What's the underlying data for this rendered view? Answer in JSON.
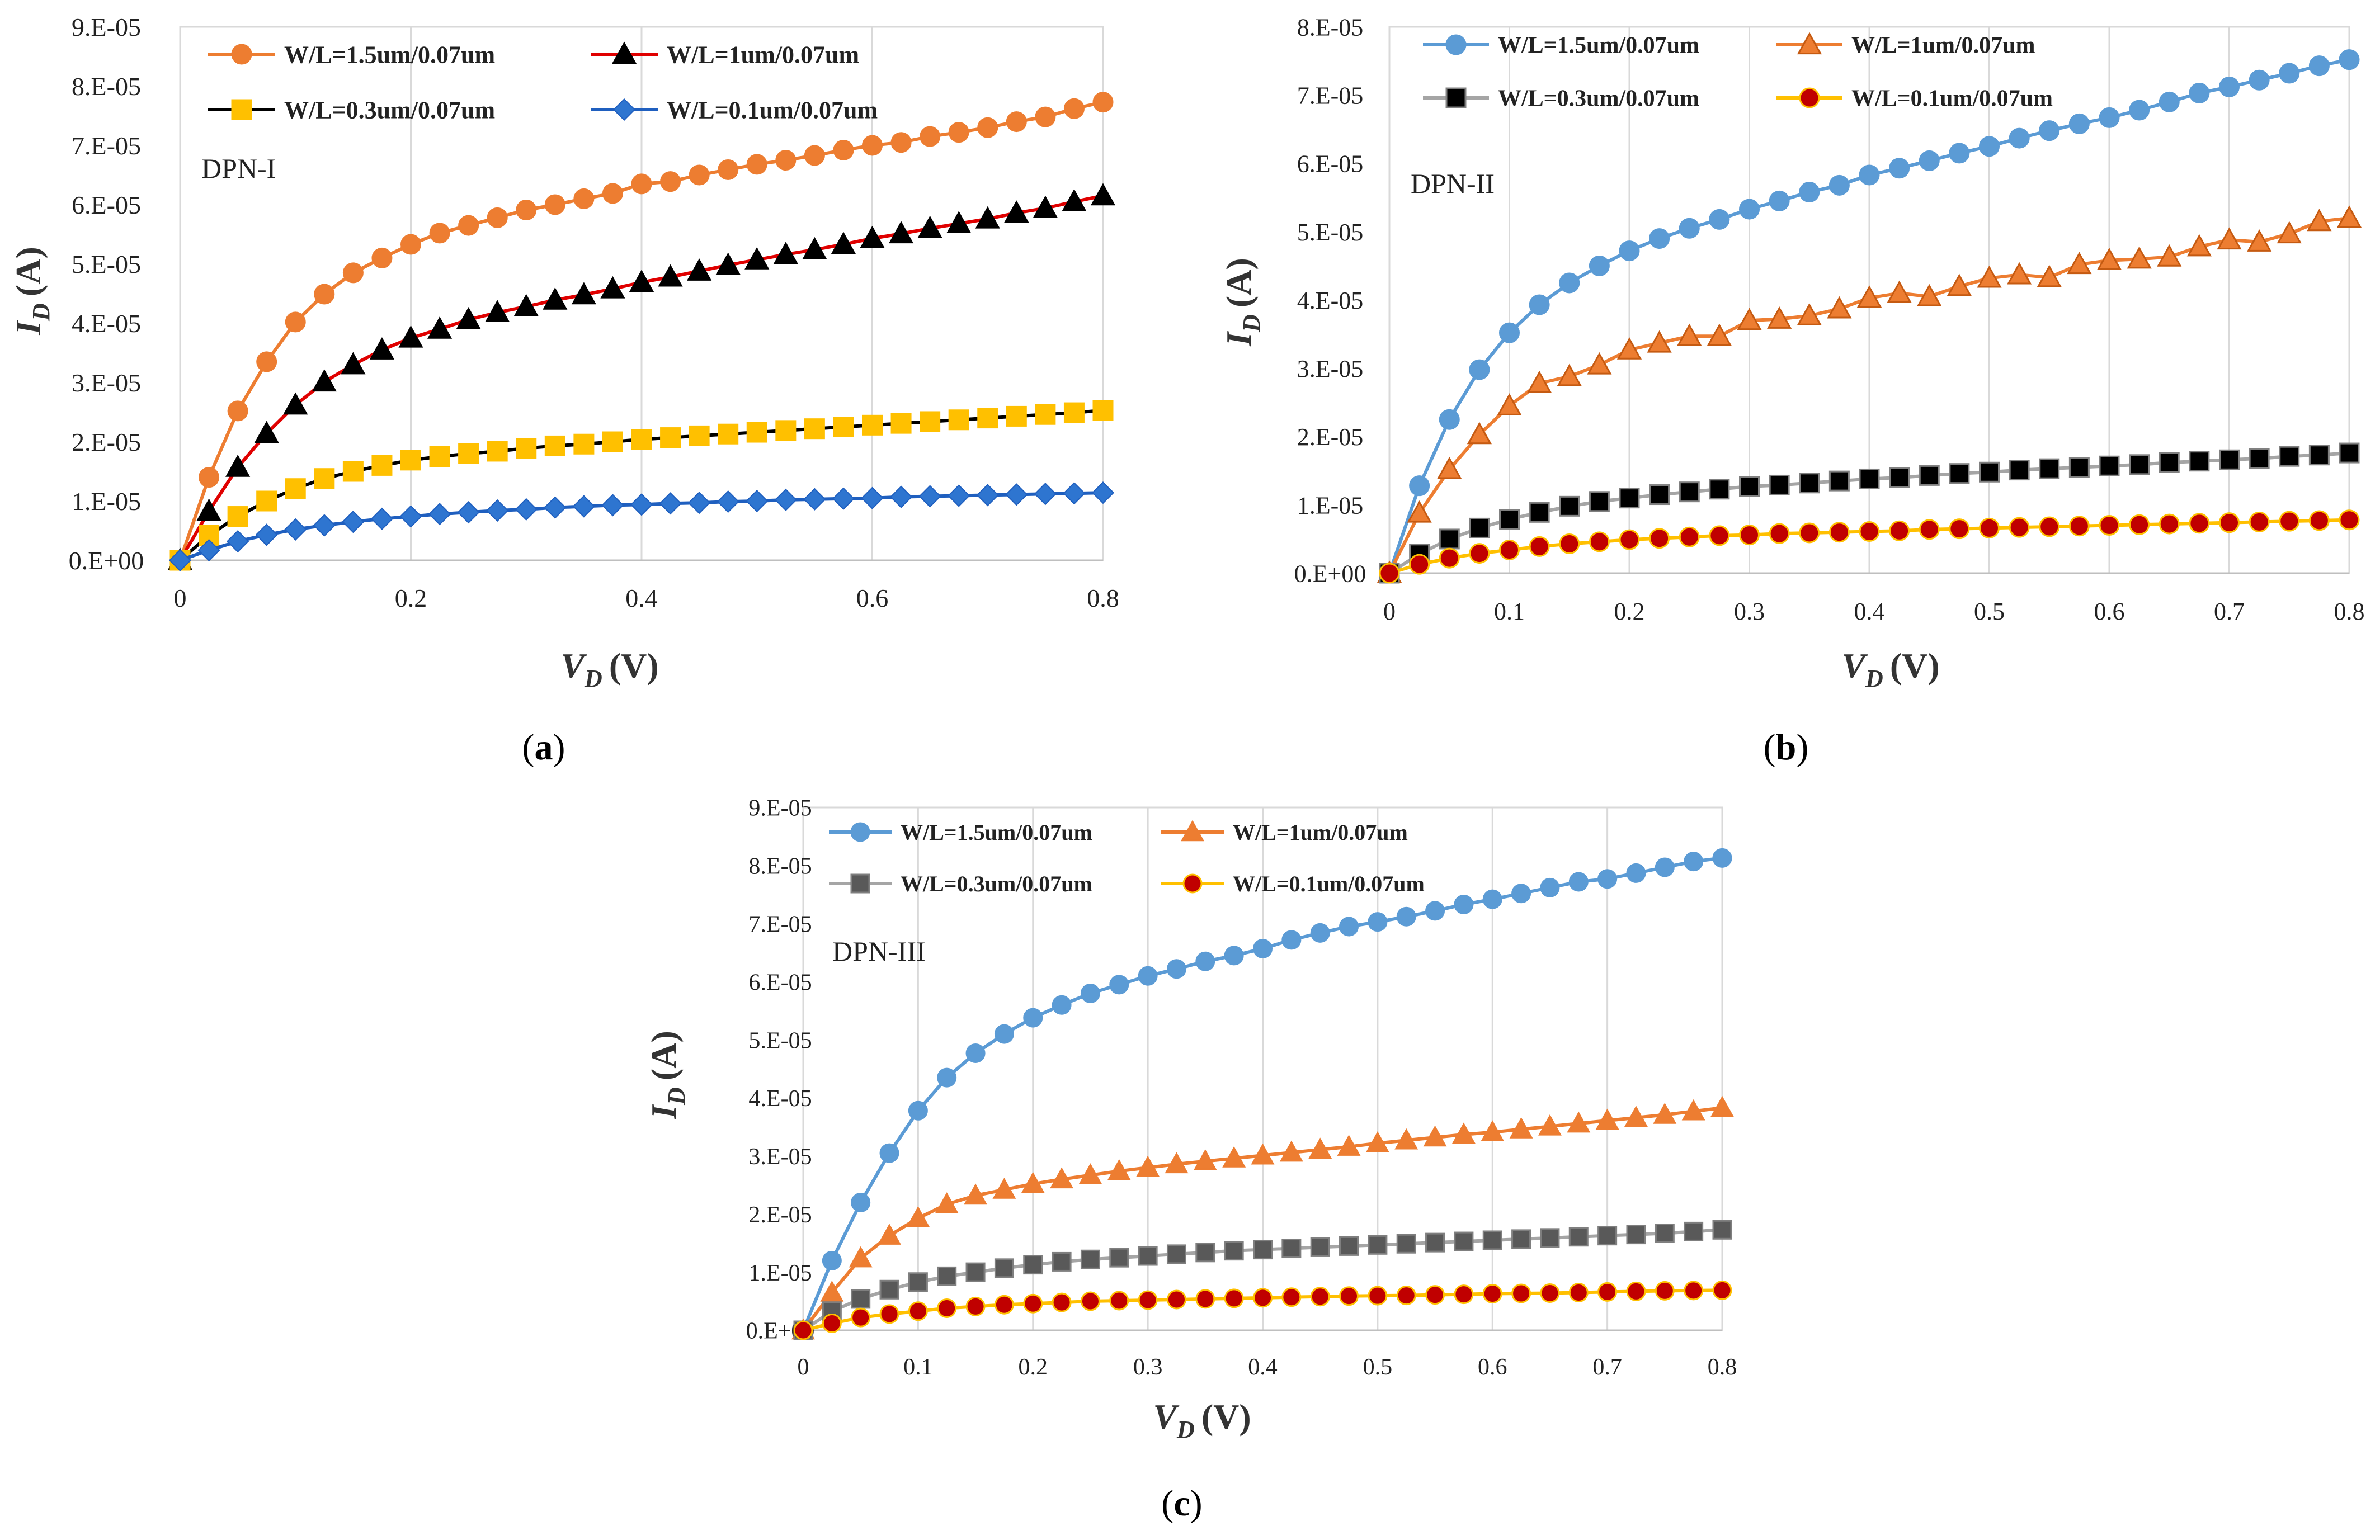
{
  "chart_data": [
    {
      "type": "line",
      "panel_label": "(a)",
      "panel_letter": "a",
      "title": "DPN-I",
      "xlabel_main": "V",
      "xlabel_sub": "D",
      "xlabel_unit": "(V)",
      "ylabel_main": "I",
      "ylabel_sub": "D",
      "ylabel_unit": "(A)",
      "xlim": [
        0,
        0.8
      ],
      "ylim": [
        0,
        9e-05
      ],
      "x_ticks": [
        0,
        0.2,
        0.4,
        0.6,
        0.8
      ],
      "x_tick_labels": [
        "0",
        "0.2",
        "0.4",
        "0.6",
        "0.8"
      ],
      "y_ticks": [
        0,
        1e-05,
        2e-05,
        3e-05,
        4e-05,
        5e-05,
        6e-05,
        7e-05,
        8e-05,
        9e-05
      ],
      "y_tick_labels": [
        "0.E+00",
        "1.E-05",
        "2.E-05",
        "3.E-05",
        "4.E-05",
        "5.E-05",
        "6.E-05",
        "7.E-05",
        "8.E-05",
        "9.E-05"
      ],
      "grid": "vertical",
      "x": [
        0,
        0.025,
        0.05,
        0.075,
        0.1,
        0.125,
        0.15,
        0.175,
        0.2,
        0.225,
        0.25,
        0.275,
        0.3,
        0.325,
        0.35,
        0.375,
        0.4,
        0.425,
        0.45,
        0.475,
        0.5,
        0.525,
        0.55,
        0.575,
        0.6,
        0.625,
        0.65,
        0.675,
        0.7,
        0.725,
        0.75,
        0.775,
        0.8
      ],
      "series": [
        {
          "name": "W/L=1.5um/0.07um",
          "line_color": "#ED7D31",
          "marker": "circle",
          "marker_fill": "#ED7D31",
          "marker_edge": "#ED7D31",
          "values": [
            0,
            1.4e-05,
            2.52e-05,
            3.35e-05,
            4.02e-05,
            4.49e-05,
            4.85e-05,
            5.1e-05,
            5.33e-05,
            5.52e-05,
            5.65e-05,
            5.78e-05,
            5.91e-05,
            6e-05,
            6.1e-05,
            6.19e-05,
            6.35e-05,
            6.39e-05,
            6.5e-05,
            6.59e-05,
            6.68e-05,
            6.75e-05,
            6.83e-05,
            6.92e-05,
            7e-05,
            7.05e-05,
            7.15e-05,
            7.22e-05,
            7.3e-05,
            7.4e-05,
            7.48e-05,
            7.62e-05,
            7.73e-05
          ]
        },
        {
          "name": "W/L=1um/0.07um",
          "line_color": "#E00000",
          "marker": "triangle",
          "marker_fill": "#000000",
          "marker_edge": "#000000",
          "values": [
            0,
            8.3e-06,
            1.57e-05,
            2.14e-05,
            2.62e-05,
            3.01e-05,
            3.3e-05,
            3.55e-05,
            3.75e-05,
            3.9e-05,
            4.06e-05,
            4.18e-05,
            4.28e-05,
            4.39e-05,
            4.48e-05,
            4.58e-05,
            4.69e-05,
            4.78e-05,
            4.88e-05,
            4.98e-05,
            5.07e-05,
            5.16e-05,
            5.24e-05,
            5.33e-05,
            5.43e-05,
            5.51e-05,
            5.6e-05,
            5.68e-05,
            5.76e-05,
            5.86e-05,
            5.94e-05,
            6.05e-05,
            6.15e-05
          ]
        },
        {
          "name": "W/L=0.3um/0.07um",
          "line_color": "#000000",
          "marker": "square",
          "marker_fill": "#FFC000",
          "marker_edge": "#FFC000",
          "values": [
            0,
            4.2e-06,
            7.4e-06,
            1e-05,
            1.21e-05,
            1.38e-05,
            1.5e-05,
            1.6e-05,
            1.69e-05,
            1.75e-05,
            1.8e-05,
            1.84e-05,
            1.89e-05,
            1.93e-05,
            1.96e-05,
            2e-05,
            2.04e-05,
            2.07e-05,
            2.1e-05,
            2.13e-05,
            2.16e-05,
            2.19e-05,
            2.22e-05,
            2.25e-05,
            2.28e-05,
            2.31e-05,
            2.34e-05,
            2.37e-05,
            2.4e-05,
            2.43e-05,
            2.46e-05,
            2.49e-05,
            2.53e-05
          ]
        },
        {
          "name": "W/L=0.1um/0.07um",
          "line_color": "#1F5FBF",
          "marker": "diamond",
          "marker_fill": "#2E75D0",
          "marker_edge": "#1F5FBF",
          "values": [
            0,
            1.7e-06,
            3.2e-06,
            4.3e-06,
            5.2e-06,
            5.9e-06,
            6.5e-06,
            7e-06,
            7.4e-06,
            7.8e-06,
            8.1e-06,
            8.4e-06,
            8.6e-06,
            8.9e-06,
            9.1e-06,
            9.3e-06,
            9.4e-06,
            9.6e-06,
            9.7e-06,
            9.9e-06,
            1e-05,
            1.02e-05,
            1.03e-05,
            1.04e-05,
            1.05e-05,
            1.07e-05,
            1.08e-05,
            1.09e-05,
            1.1e-05,
            1.11e-05,
            1.12e-05,
            1.13e-05,
            1.14e-05
          ]
        }
      ]
    },
    {
      "type": "line",
      "panel_label": "(b)",
      "panel_letter": "b",
      "title": "DPN-II",
      "xlabel_main": "V",
      "xlabel_sub": "D",
      "xlabel_unit": "(V)",
      "ylabel_main": "I",
      "ylabel_sub": "D",
      "ylabel_unit": "(A)",
      "xlim": [
        0,
        0.8
      ],
      "ylim": [
        0,
        8e-05
      ],
      "x_ticks": [
        0,
        0.1,
        0.2,
        0.3,
        0.4,
        0.5,
        0.6,
        0.7,
        0.8
      ],
      "x_tick_labels": [
        "0",
        "0.1",
        "0.2",
        "0.3",
        "0.4",
        "0.5",
        "0.6",
        "0.7",
        "0.8"
      ],
      "y_ticks": [
        0,
        1e-05,
        2e-05,
        3e-05,
        4e-05,
        5e-05,
        6e-05,
        7e-05,
        8e-05
      ],
      "y_tick_labels": [
        "0.E+00",
        "1.E-05",
        "2.E-05",
        "3.E-05",
        "4.E-05",
        "5.E-05",
        "6.E-05",
        "7.E-05",
        "8.E-05"
      ],
      "grid": "vertical",
      "x": [
        0,
        0.025,
        0.05,
        0.075,
        0.1,
        0.125,
        0.15,
        0.175,
        0.2,
        0.225,
        0.25,
        0.275,
        0.3,
        0.325,
        0.35,
        0.375,
        0.4,
        0.425,
        0.45,
        0.475,
        0.5,
        0.525,
        0.55,
        0.575,
        0.6,
        0.625,
        0.65,
        0.675,
        0.7,
        0.725,
        0.75,
        0.775,
        0.8
      ],
      "series": [
        {
          "name": "W/L=1.5um/0.07um",
          "line_color": "#5B9BD5",
          "marker": "circle",
          "marker_fill": "#5B9BD5",
          "marker_edge": "#5B9BD5",
          "values": [
            0,
            1.28e-05,
            2.25e-05,
            2.98e-05,
            3.52e-05,
            3.93e-05,
            4.25e-05,
            4.5e-05,
            4.72e-05,
            4.9e-05,
            5.05e-05,
            5.18e-05,
            5.33e-05,
            5.45e-05,
            5.58e-05,
            5.68e-05,
            5.83e-05,
            5.93e-05,
            6.04e-05,
            6.15e-05,
            6.25e-05,
            6.37e-05,
            6.48e-05,
            6.58e-05,
            6.67e-05,
            6.78e-05,
            6.9e-05,
            7.03e-05,
            7.12e-05,
            7.22e-05,
            7.32e-05,
            7.43e-05,
            7.52e-05
          ]
        },
        {
          "name": "W/L=1um/0.07um",
          "line_color": "#ED7D31",
          "marker": "triangle",
          "marker_fill": "#ED7D31",
          "marker_edge": "#C55A11",
          "values": [
            0,
            8.8e-06,
            1.52e-05,
            2.03e-05,
            2.45e-05,
            2.78e-05,
            2.88e-05,
            3.05e-05,
            3.27e-05,
            3.37e-05,
            3.47e-05,
            3.47e-05,
            3.7e-05,
            3.72e-05,
            3.77e-05,
            3.87e-05,
            4.03e-05,
            4.1e-05,
            4.05e-05,
            4.2e-05,
            4.32e-05,
            4.37e-05,
            4.33e-05,
            4.52e-05,
            4.58e-05,
            4.6e-05,
            4.63e-05,
            4.78e-05,
            4.88e-05,
            4.85e-05,
            4.97e-05,
            5.15e-05,
            5.2e-05
          ]
        },
        {
          "name": "W/L=0.3um/0.07um",
          "line_color": "#A5A5A5",
          "marker": "square",
          "marker_fill": "#000000",
          "marker_edge": "#808080",
          "values": [
            0,
            2.8e-06,
            5e-06,
            6.6e-06,
            7.9e-06,
            8.9e-06,
            9.8e-06,
            1.05e-05,
            1.1e-05,
            1.15e-05,
            1.19e-05,
            1.23e-05,
            1.27e-05,
            1.29e-05,
            1.32e-05,
            1.35e-05,
            1.38e-05,
            1.4e-05,
            1.43e-05,
            1.46e-05,
            1.48e-05,
            1.51e-05,
            1.53e-05,
            1.55e-05,
            1.57e-05,
            1.59e-05,
            1.62e-05,
            1.64e-05,
            1.66e-05,
            1.68e-05,
            1.71e-05,
            1.73e-05,
            1.76e-05
          ]
        },
        {
          "name": "W/L=0.1um/0.07um",
          "line_color": "#FFC000",
          "marker": "circle",
          "marker_fill": "#C00000",
          "marker_edge": "#FFC000",
          "values": [
            0,
            1.3e-06,
            2.2e-06,
            2.9e-06,
            3.4e-06,
            3.9e-06,
            4.3e-06,
            4.6e-06,
            4.9e-06,
            5.1e-06,
            5.3e-06,
            5.5e-06,
            5.6e-06,
            5.8e-06,
            5.9e-06,
            6e-06,
            6.1e-06,
            6.2e-06,
            6.4e-06,
            6.5e-06,
            6.6e-06,
            6.7e-06,
            6.8e-06,
            6.9e-06,
            7e-06,
            7.1e-06,
            7.2e-06,
            7.3e-06,
            7.4e-06,
            7.5e-06,
            7.6e-06,
            7.7e-06,
            7.8e-06
          ]
        }
      ]
    },
    {
      "type": "line",
      "panel_label": "(c)",
      "panel_letter": "c",
      "title": "DPN-III",
      "xlabel_main": "V",
      "xlabel_sub": "D",
      "xlabel_unit": "(V)",
      "ylabel_main": "I",
      "ylabel_sub": "D",
      "ylabel_unit": "(A)",
      "xlim": [
        0,
        0.8
      ],
      "ylim": [
        0,
        9e-05
      ],
      "x_ticks": [
        0,
        0.1,
        0.2,
        0.3,
        0.4,
        0.5,
        0.6,
        0.7,
        0.8
      ],
      "x_tick_labels": [
        "0",
        "0.1",
        "0.2",
        "0.3",
        "0.4",
        "0.5",
        "0.6",
        "0.7",
        "0.8"
      ],
      "y_ticks": [
        0,
        1e-05,
        2e-05,
        3e-05,
        4e-05,
        5e-05,
        6e-05,
        7e-05,
        8e-05,
        9e-05
      ],
      "y_tick_labels": [
        "0.E+00",
        "1.E-05",
        "2.E-05",
        "3.E-05",
        "4.E-05",
        "5.E-05",
        "6.E-05",
        "7.E-05",
        "8.E-05",
        "9.E-05"
      ],
      "grid": "vertical",
      "x": [
        0,
        0.025,
        0.05,
        0.075,
        0.1,
        0.125,
        0.15,
        0.175,
        0.2,
        0.225,
        0.25,
        0.275,
        0.3,
        0.325,
        0.35,
        0.375,
        0.4,
        0.425,
        0.45,
        0.475,
        0.5,
        0.525,
        0.55,
        0.575,
        0.6,
        0.625,
        0.65,
        0.675,
        0.7,
        0.725,
        0.75,
        0.775,
        0.8
      ],
      "series": [
        {
          "name": "W/L=1.5um/0.07um",
          "line_color": "#5B9BD5",
          "marker": "circle",
          "marker_fill": "#5B9BD5",
          "marker_edge": "#5B9BD5",
          "values": [
            0,
            1.2e-05,
            2.2e-05,
            3.05e-05,
            3.78e-05,
            4.35e-05,
            4.77e-05,
            5.1e-05,
            5.38e-05,
            5.6e-05,
            5.8e-05,
            5.95e-05,
            6.1e-05,
            6.22e-05,
            6.35e-05,
            6.45e-05,
            6.57e-05,
            6.72e-05,
            6.84e-05,
            6.95e-05,
            7.03e-05,
            7.12e-05,
            7.22e-05,
            7.33e-05,
            7.42e-05,
            7.52e-05,
            7.62e-05,
            7.72e-05,
            7.77e-05,
            7.87e-05,
            7.97e-05,
            8.07e-05,
            8.13e-05
          ]
        },
        {
          "name": "W/L=1um/0.07um",
          "line_color": "#ED7D31",
          "marker": "triangle",
          "marker_fill": "#ED7D31",
          "marker_edge": "#ED7D31",
          "values": [
            0,
            6.5e-06,
            1.24e-05,
            1.63e-05,
            1.93e-05,
            2.17e-05,
            2.32e-05,
            2.42e-05,
            2.52e-05,
            2.6e-05,
            2.67e-05,
            2.74e-05,
            2.8e-05,
            2.86e-05,
            2.91e-05,
            2.96e-05,
            3.01e-05,
            3.06e-05,
            3.11e-05,
            3.16e-05,
            3.22e-05,
            3.27e-05,
            3.32e-05,
            3.37e-05,
            3.41e-05,
            3.46e-05,
            3.51e-05,
            3.56e-05,
            3.61e-05,
            3.66e-05,
            3.71e-05,
            3.77e-05,
            3.83e-05
          ]
        },
        {
          "name": "W/L=0.3um/0.07um",
          "line_color": "#A5A5A5",
          "marker": "square",
          "marker_fill": "#595959",
          "marker_edge": "#7F7F7F",
          "values": [
            0,
            3.3e-06,
            5.4e-06,
            7e-06,
            8.3e-06,
            9.3e-06,
            1e-05,
            1.07e-05,
            1.13e-05,
            1.18e-05,
            1.22e-05,
            1.25e-05,
            1.28e-05,
            1.31e-05,
            1.34e-05,
            1.37e-05,
            1.39e-05,
            1.41e-05,
            1.43e-05,
            1.45e-05,
            1.47e-05,
            1.49e-05,
            1.51e-05,
            1.53e-05,
            1.55e-05,
            1.57e-05,
            1.59e-05,
            1.61e-05,
            1.63e-05,
            1.65e-05,
            1.67e-05,
            1.7e-05,
            1.73e-05
          ]
        },
        {
          "name": "W/L=0.1um/0.07um",
          "line_color": "#FFC000",
          "marker": "circle",
          "marker_fill": "#C00000",
          "marker_edge": "#FFC000",
          "values": [
            0,
            1.2e-06,
            2.2e-06,
            2.8e-06,
            3.3e-06,
            3.8e-06,
            4.1e-06,
            4.4e-06,
            4.6e-06,
            4.8e-06,
            5e-06,
            5.1e-06,
            5.2e-06,
            5.3e-06,
            5.4e-06,
            5.5e-06,
            5.6e-06,
            5.7e-06,
            5.8e-06,
            5.9e-06,
            5.95e-06,
            6e-06,
            6.1e-06,
            6.2e-06,
            6.3e-06,
            6.35e-06,
            6.4e-06,
            6.5e-06,
            6.6e-06,
            6.7e-06,
            6.8e-06,
            6.85e-06,
            6.9e-06
          ]
        }
      ]
    }
  ]
}
